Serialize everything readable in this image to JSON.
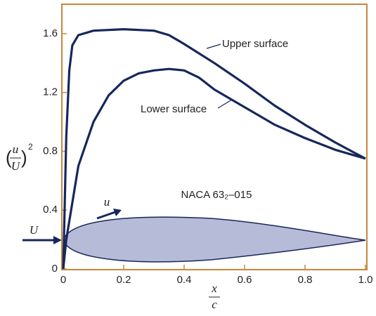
{
  "chart_data": {
    "type": "line",
    "xlabel": {
      "numerator": "x",
      "denominator": "c"
    },
    "ylabel": {
      "numerator": "u",
      "denominator": "U",
      "exponent": "2"
    },
    "xlim": [
      0,
      1
    ],
    "ylim": [
      0,
      1.8
    ],
    "xticks": [
      0,
      0.2,
      0.4,
      0.6,
      0.8,
      {
        "value": 1,
        "label": "1.0"
      }
    ],
    "yticks": [
      0,
      0.4,
      0.8,
      1.2,
      1.6
    ],
    "series": [
      {
        "name": "Upper surface",
        "color": "#16275c",
        "x": [
          0,
          0.01,
          0.02,
          0.03,
          0.05,
          0.1,
          0.2,
          0.3,
          0.35,
          0.4,
          0.5,
          0.6,
          0.7,
          0.8,
          0.9,
          1.0
        ],
        "values": [
          0,
          0.9,
          1.35,
          1.52,
          1.59,
          1.62,
          1.63,
          1.62,
          1.59,
          1.53,
          1.4,
          1.26,
          1.11,
          0.98,
          0.86,
          0.75
        ]
      },
      {
        "name": "Lower surface",
        "color": "#16275c",
        "x": [
          0,
          0.01,
          0.05,
          0.1,
          0.15,
          0.2,
          0.25,
          0.3,
          0.35,
          0.4,
          0.45,
          0.5,
          0.6,
          0.7,
          0.8,
          0.9,
          1.0
        ],
        "values": [
          0,
          0.2,
          0.7,
          1.0,
          1.18,
          1.28,
          1.33,
          1.35,
          1.36,
          1.35,
          1.3,
          1.22,
          1.1,
          0.98,
          0.89,
          0.81,
          0.75
        ]
      }
    ],
    "annotations": {
      "airfoil": "NACA 63₂–015",
      "freestream": "U",
      "local": "u"
    }
  }
}
